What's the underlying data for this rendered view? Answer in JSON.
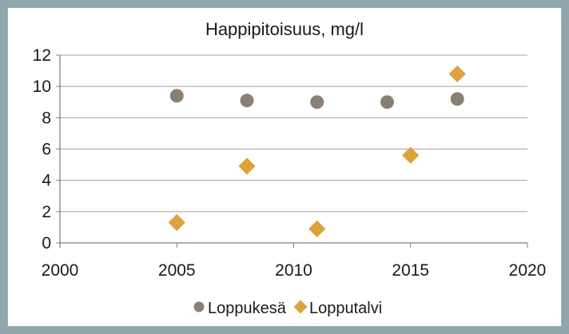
{
  "chart_data": {
    "type": "scatter",
    "title": "Happipitoisuus, mg/l",
    "x": {
      "min": 2000,
      "max": 2020,
      "ticks": [
        "2000",
        "2005",
        "2010",
        "2015",
        "2020"
      ]
    },
    "y": {
      "min": 0,
      "max": 12,
      "ticks": [
        "0",
        "2",
        "4",
        "6",
        "8",
        "10",
        "12"
      ]
    },
    "grid": true,
    "legend_position": "bottom",
    "series": [
      {
        "id": "loppukesa",
        "name": "Loppukesä",
        "marker": "circle",
        "color": "#8b7f73",
        "points": [
          [
            2005,
            9.4
          ],
          [
            2008,
            9.1
          ],
          [
            2011,
            9.0
          ],
          [
            2014,
            9.0
          ],
          [
            2017,
            9.2
          ]
        ]
      },
      {
        "id": "lopputalvi",
        "name": "Lopputalvi",
        "marker": "diamond",
        "color": "#dda23c",
        "points": [
          [
            2005,
            1.3
          ],
          [
            2008,
            4.9
          ],
          [
            2011,
            0.9
          ],
          [
            2015,
            5.6
          ],
          [
            2017,
            10.8
          ]
        ]
      }
    ]
  },
  "colors": {
    "frame": "#8fa7ac",
    "plot_background": "#ffffff",
    "gridline": "#a3a3a3",
    "axis": "#7f7f7f",
    "text": "#1a1a1a"
  }
}
